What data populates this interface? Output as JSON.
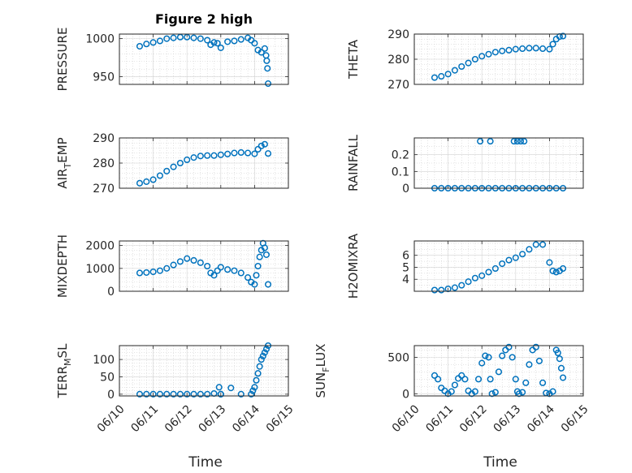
{
  "figure": {
    "title": "Figure 2 high",
    "marker_color": "#0072bd"
  },
  "chart_data": [
    {
      "type": "scatter",
      "title": "Figure 2 high",
      "ylabel": "PRESSURE",
      "xlabel": "",
      "xlim": [
        0,
        5
      ],
      "ylim": [
        940,
        1006
      ],
      "yticks": [
        950,
        1000
      ],
      "yminor_step": 10,
      "xtick_labels": [],
      "grid": true,
      "marker": "circle",
      "series": [
        {
          "x": [
            0.6,
            0.8,
            1.0,
            1.2,
            1.4,
            1.6,
            1.8,
            2.0,
            2.2,
            2.4,
            2.6,
            2.7,
            2.8,
            2.9,
            3.0,
            3.2,
            3.4,
            3.6,
            3.8,
            3.9,
            4.0,
            4.1,
            4.2,
            4.3,
            4.34,
            4.36,
            4.38,
            4.4
          ],
          "y": [
            990,
            993,
            995,
            997,
            1000,
            1001,
            1002,
            1002,
            1001,
            1000,
            998,
            992,
            995,
            994,
            988,
            996,
            997,
            999,
            1001,
            998,
            994,
            985,
            982,
            987,
            978,
            971,
            961,
            941
          ]
        }
      ]
    },
    {
      "type": "scatter",
      "ylabel": "THETA",
      "xlabel": "",
      "xlim": [
        0,
        5
      ],
      "ylim": [
        270,
        290
      ],
      "yticks": [
        270,
        280,
        290
      ],
      "yminor_step": 2,
      "xtick_labels": [],
      "grid": true,
      "marker": "circle",
      "series": [
        {
          "x": [
            0.6,
            0.8,
            1.0,
            1.2,
            1.4,
            1.6,
            1.8,
            2.0,
            2.2,
            2.4,
            2.6,
            2.8,
            3.0,
            3.2,
            3.4,
            3.6,
            3.8,
            4.0,
            4.1,
            4.2,
            4.3,
            4.4
          ],
          "y": [
            272.7,
            273.2,
            274.1,
            275.6,
            277.1,
            278.5,
            280.0,
            281.2,
            282.0,
            282.8,
            283.3,
            283.6,
            284.0,
            284.2,
            284.4,
            284.4,
            284.2,
            284.0,
            286.0,
            288.0,
            289.0,
            289.2
          ]
        }
      ]
    },
    {
      "type": "scatter",
      "ylabel": "AIR_TEMP",
      "xlabel": "",
      "xlim": [
        0,
        5
      ],
      "ylim": [
        270,
        290
      ],
      "yticks": [
        270,
        280,
        290
      ],
      "yminor_step": 2,
      "xtick_labels": [],
      "grid": true,
      "marker": "circle",
      "series": [
        {
          "x": [
            0.6,
            0.8,
            1.0,
            1.2,
            1.4,
            1.6,
            1.8,
            2.0,
            2.2,
            2.4,
            2.6,
            2.8,
            3.0,
            3.2,
            3.4,
            3.6,
            3.8,
            4.0,
            4.1,
            4.2,
            4.3,
            4.4
          ],
          "y": [
            272.0,
            272.6,
            273.4,
            275.0,
            276.8,
            278.5,
            280.0,
            281.3,
            282.2,
            282.8,
            283.0,
            283.0,
            283.3,
            283.6,
            284.0,
            284.2,
            284.0,
            283.7,
            285.5,
            286.8,
            287.5,
            283.8
          ]
        }
      ]
    },
    {
      "type": "scatter",
      "ylabel": "RAINFALL",
      "xlabel": "",
      "xlim": [
        0,
        5
      ],
      "ylim": [
        0,
        0.3
      ],
      "yticks": [
        0,
        0.1,
        0.2
      ],
      "ytick_labels": [
        "0",
        "0.1",
        "0.2"
      ],
      "yminor_step": 0.05,
      "xtick_labels": [],
      "grid": true,
      "marker": "circle",
      "series": [
        {
          "x": [
            0.6,
            0.8,
            1.0,
            1.2,
            1.4,
            1.6,
            1.8,
            2.0,
            2.2,
            2.4,
            2.6,
            2.8,
            3.0,
            3.2,
            3.4,
            3.6,
            3.8,
            4.0,
            4.2,
            4.4,
            1.95,
            2.25,
            2.95,
            3.05,
            3.15,
            3.25
          ],
          "y": [
            0,
            0,
            0,
            0,
            0,
            0,
            0,
            0,
            0,
            0,
            0,
            0,
            0,
            0,
            0,
            0,
            0,
            0,
            0,
            0,
            0.28,
            0.28,
            0.28,
            0.28,
            0.28,
            0.28
          ]
        }
      ]
    },
    {
      "type": "scatter",
      "ylabel": "MIXDEPTH",
      "xlabel": "",
      "xlim": [
        0,
        5
      ],
      "ylim": [
        0,
        2200
      ],
      "yticks": [
        0,
        1000,
        2000
      ],
      "yminor_step": 200,
      "xtick_labels": [],
      "grid": true,
      "marker": "circle",
      "series": [
        {
          "x": [
            0.6,
            0.8,
            1.0,
            1.2,
            1.4,
            1.6,
            1.8,
            2.0,
            2.2,
            2.4,
            2.6,
            2.7,
            2.8,
            2.9,
            3.0,
            3.2,
            3.4,
            3.6,
            3.8,
            3.9,
            4.0,
            4.05,
            4.1,
            4.15,
            4.2,
            4.25,
            4.3,
            4.35,
            4.4
          ],
          "y": [
            800,
            820,
            850,
            900,
            1000,
            1150,
            1300,
            1430,
            1350,
            1250,
            1100,
            800,
            700,
            900,
            1050,
            950,
            900,
            800,
            600,
            400,
            300,
            700,
            1100,
            1500,
            1800,
            2100,
            1900,
            1600,
            300
          ]
        }
      ]
    },
    {
      "type": "scatter",
      "ylabel": "H2OMIXRA",
      "xlabel": "",
      "xlim": [
        0,
        5
      ],
      "ylim": [
        3,
        7.2
      ],
      "yticks": [
        4,
        5,
        6
      ],
      "yminor_step": 0.5,
      "xtick_labels": [],
      "grid": true,
      "marker": "circle",
      "series": [
        {
          "x": [
            0.6,
            0.8,
            1.0,
            1.2,
            1.4,
            1.6,
            1.8,
            2.0,
            2.2,
            2.4,
            2.6,
            2.8,
            3.0,
            3.2,
            3.4,
            3.6,
            3.8,
            4.0,
            4.1,
            4.2,
            4.3,
            4.4
          ],
          "y": [
            3.1,
            3.1,
            3.2,
            3.3,
            3.5,
            3.8,
            4.1,
            4.3,
            4.6,
            4.9,
            5.3,
            5.6,
            5.8,
            6.1,
            6.5,
            6.9,
            6.9,
            5.4,
            4.7,
            4.6,
            4.7,
            4.9
          ]
        }
      ]
    },
    {
      "type": "scatter",
      "ylabel": "TERR_MSL",
      "xlabel": "Time",
      "xlim": [
        0,
        5
      ],
      "ylim": [
        -5,
        140
      ],
      "yticks": [
        0,
        50,
        100
      ],
      "yminor_step": 10,
      "xtick_labels": [
        "06/10",
        "06/11",
        "06/12",
        "06/13",
        "06/14",
        "06/15"
      ],
      "grid": true,
      "marker": "circle",
      "series": [
        {
          "x": [
            0.6,
            0.8,
            1.0,
            1.2,
            1.4,
            1.6,
            1.8,
            2.0,
            2.2,
            2.4,
            2.6,
            2.8,
            2.95,
            3.0,
            3.3,
            3.6,
            3.9,
            3.95,
            4.0,
            4.05,
            4.1,
            4.15,
            4.2,
            4.25,
            4.3,
            4.35,
            4.4,
            3.0
          ],
          "y": [
            0,
            0,
            0,
            0,
            0,
            0,
            0,
            0,
            0,
            0,
            0,
            2,
            20,
            0,
            18,
            0,
            0,
            10,
            20,
            40,
            60,
            80,
            100,
            110,
            120,
            130,
            140,
            0
          ]
        }
      ]
    },
    {
      "type": "scatter",
      "ylabel": "SUN_FLUX",
      "xlabel": "Time",
      "xlim": [
        0,
        5
      ],
      "ylim": [
        -30,
        660
      ],
      "yticks": [
        0,
        500
      ],
      "yminor_step": 100,
      "xtick_labels": [
        "06/10",
        "06/11",
        "06/12",
        "06/13",
        "06/14",
        "06/15"
      ],
      "grid": true,
      "marker": "circle",
      "series": [
        {
          "x": [
            0.6,
            0.7,
            0.8,
            0.9,
            1.0,
            1.1,
            1.2,
            1.3,
            1.4,
            1.5,
            1.6,
            1.7,
            1.8,
            1.9,
            2.0,
            2.1,
            2.2,
            2.25,
            2.3,
            2.4,
            2.5,
            2.6,
            2.7,
            2.8,
            2.9,
            3.0,
            3.05,
            3.1,
            3.2,
            3.3,
            3.4,
            3.5,
            3.6,
            3.7,
            3.8,
            3.9,
            4.0,
            4.1,
            4.2,
            4.25,
            4.3,
            4.35,
            4.4
          ],
          "y": [
            250,
            200,
            80,
            40,
            0,
            30,
            120,
            210,
            250,
            200,
            40,
            0,
            30,
            200,
            420,
            520,
            500,
            200,
            0,
            20,
            300,
            520,
            600,
            640,
            500,
            200,
            30,
            0,
            20,
            150,
            400,
            600,
            640,
            450,
            150,
            10,
            0,
            30,
            600,
            560,
            480,
            350,
            220
          ]
        }
      ]
    }
  ]
}
